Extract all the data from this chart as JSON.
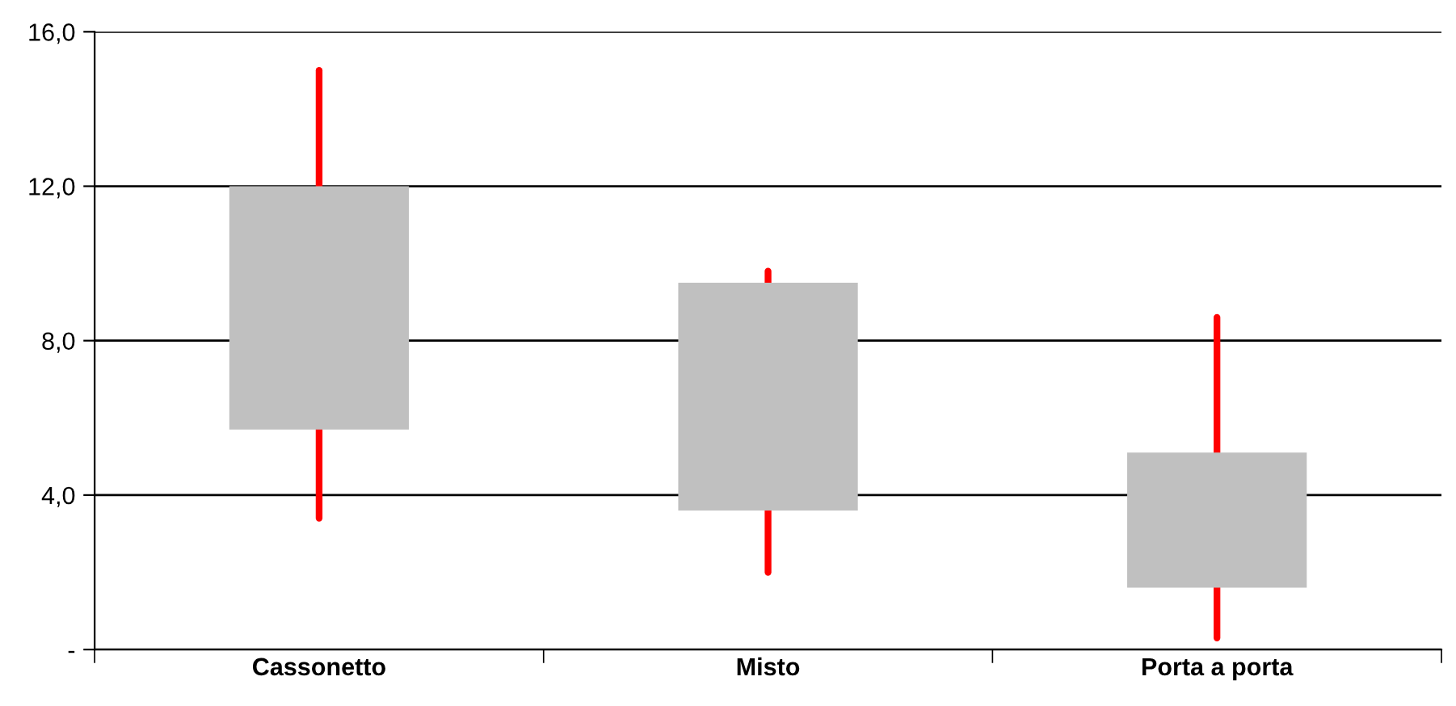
{
  "chart_data": {
    "type": "candlestick",
    "categories": [
      "Cassonetto",
      "Misto",
      "Porta a porta"
    ],
    "ohlc": [
      [
        5.7,
        15.0,
        3.4,
        12.0
      ],
      [
        3.6,
        9.8,
        2.0,
        9.5
      ],
      [
        1.6,
        8.6,
        0.3,
        5.1
      ]
    ],
    "color": "#c0c0c0",
    "ylim": [
      0,
      16
    ],
    "yticks": [
      {
        "value": 0,
        "label": "-"
      },
      {
        "value": 4,
        "label": "4,0"
      },
      {
        "value": 8,
        "label": "8,0"
      },
      {
        "value": 12,
        "label": "12,0"
      },
      {
        "value": 16,
        "label": "16,0"
      }
    ],
    "grid": "y",
    "legend": false
  }
}
